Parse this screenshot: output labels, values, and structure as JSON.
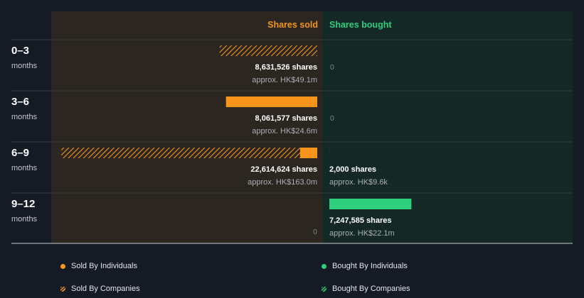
{
  "chart_data": {
    "type": "bar",
    "headers": {
      "sold": "Shares sold",
      "bought": "Shares bought"
    },
    "colors": {
      "sold": "#f6941c",
      "bought": "#2dcf7c",
      "sold_panel": "#2b2620",
      "bought_panel": "#142926",
      "background": "#141b25"
    },
    "xlim": [
      0,
      23000000
    ],
    "rows": [
      {
        "period": "0–3",
        "unit": "months",
        "sold": {
          "companies": 8631526,
          "individuals": 0,
          "label": "8,631,526 shares",
          "approx": "approx. HK$49.1m"
        },
        "bought": {
          "companies": 0,
          "individuals": 0,
          "label": "0",
          "approx": ""
        }
      },
      {
        "period": "3–6",
        "unit": "months",
        "sold": {
          "companies": 0,
          "individuals": 8061577,
          "label": "8,061,577 shares",
          "approx": "approx. HK$24.6m"
        },
        "bought": {
          "companies": 0,
          "individuals": 0,
          "label": "0",
          "approx": ""
        }
      },
      {
        "period": "6–9",
        "unit": "months",
        "sold": {
          "companies": 21100000,
          "individuals": 1514624,
          "label": "22,614,624 shares",
          "approx": "approx. HK$163.0m"
        },
        "bought": {
          "companies": 0,
          "individuals": 2000,
          "label": "2,000 shares",
          "approx": "approx. HK$9.6k"
        }
      },
      {
        "period": "9–12",
        "unit": "months",
        "sold": {
          "companies": 0,
          "individuals": 0,
          "label": "0",
          "approx": ""
        },
        "bought": {
          "companies": 0,
          "individuals": 7247585,
          "label": "7,247,585 shares",
          "approx": "approx. HK$22.1m"
        }
      }
    ],
    "legend": [
      {
        "label": "Sold By Individuals",
        "style": "solid",
        "color": "#f6941c"
      },
      {
        "label": "Bought By Individuals",
        "style": "solid",
        "color": "#2dcf7c"
      },
      {
        "label": "Sold By Companies",
        "style": "hatched",
        "color": "#f6941c"
      },
      {
        "label": "Bought By Companies",
        "style": "hatched",
        "color": "#2dcf7c"
      }
    ]
  }
}
